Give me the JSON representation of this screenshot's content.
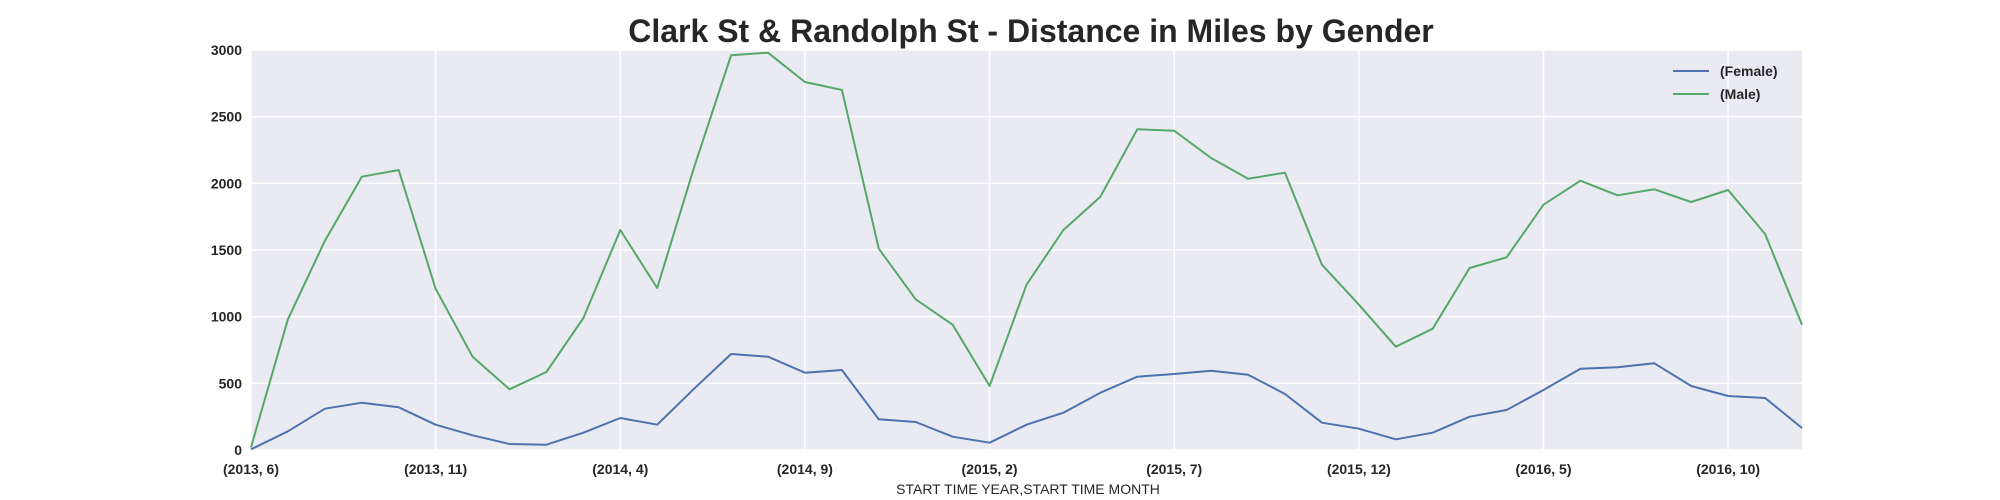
{
  "chart_data": {
    "type": "line",
    "title": "Clark St & Randolph St - Distance in Miles by Gender",
    "xlabel": "START TIME YEAR,START TIME MONTH",
    "ylabel": "",
    "ylim": [
      0,
      3000
    ],
    "yticks": [
      0,
      500,
      1000,
      1500,
      2000,
      2500,
      3000
    ],
    "xticks": [
      {
        "index": 0,
        "label": "(2013, 6)"
      },
      {
        "index": 5,
        "label": "(2013, 11)"
      },
      {
        "index": 10,
        "label": "(2014, 4)"
      },
      {
        "index": 15,
        "label": "(2014, 9)"
      },
      {
        "index": 20,
        "label": "(2015, 2)"
      },
      {
        "index": 25,
        "label": "(2015, 7)"
      },
      {
        "index": 30,
        "label": "(2015, 12)"
      },
      {
        "index": 35,
        "label": "(2016, 5)"
      },
      {
        "index": 40,
        "label": "(2016, 10)"
      }
    ],
    "x": [
      "2013-06",
      "2013-07",
      "2013-08",
      "2013-09",
      "2013-10",
      "2013-11",
      "2013-12",
      "2014-01",
      "2014-02",
      "2014-03",
      "2014-04",
      "2014-05",
      "2014-06",
      "2014-07",
      "2014-08",
      "2014-09",
      "2014-10",
      "2014-11",
      "2014-12",
      "2015-01",
      "2015-02",
      "2015-03",
      "2015-04",
      "2015-05",
      "2015-06",
      "2015-07",
      "2015-08",
      "2015-09",
      "2015-10",
      "2015-11",
      "2015-12",
      "2016-01",
      "2016-02",
      "2016-03",
      "2016-04",
      "2016-05",
      "2016-06",
      "2016-07",
      "2016-08",
      "2016-09",
      "2016-10",
      "2016-11",
      "2016-12"
    ],
    "grid": true,
    "legend_position": "top-right",
    "series": [
      {
        "name": "(Female)",
        "color": "#4c72b0",
        "values": [
          5,
          140,
          310,
          355,
          320,
          190,
          110,
          45,
          40,
          130,
          240,
          190,
          460,
          720,
          700,
          580,
          600,
          230,
          210,
          100,
          55,
          190,
          280,
          430,
          550,
          570,
          595,
          565,
          420,
          205,
          160,
          80,
          130,
          250,
          300,
          450,
          610,
          620,
          650,
          480,
          405,
          390,
          165
        ]
      },
      {
        "name": "(Male)",
        "color": "#55a868",
        "values": [
          20,
          980,
          1570,
          2050,
          2100,
          1210,
          700,
          455,
          585,
          990,
          1650,
          1215,
          2120,
          2960,
          2980,
          2760,
          2700,
          1510,
          1130,
          940,
          480,
          1240,
          1650,
          1900,
          2405,
          2395,
          2190,
          2035,
          2080,
          1390,
          1090,
          775,
          910,
          1365,
          1445,
          1840,
          2020,
          1910,
          1955,
          1860,
          1950,
          1620,
          940
        ]
      }
    ]
  }
}
